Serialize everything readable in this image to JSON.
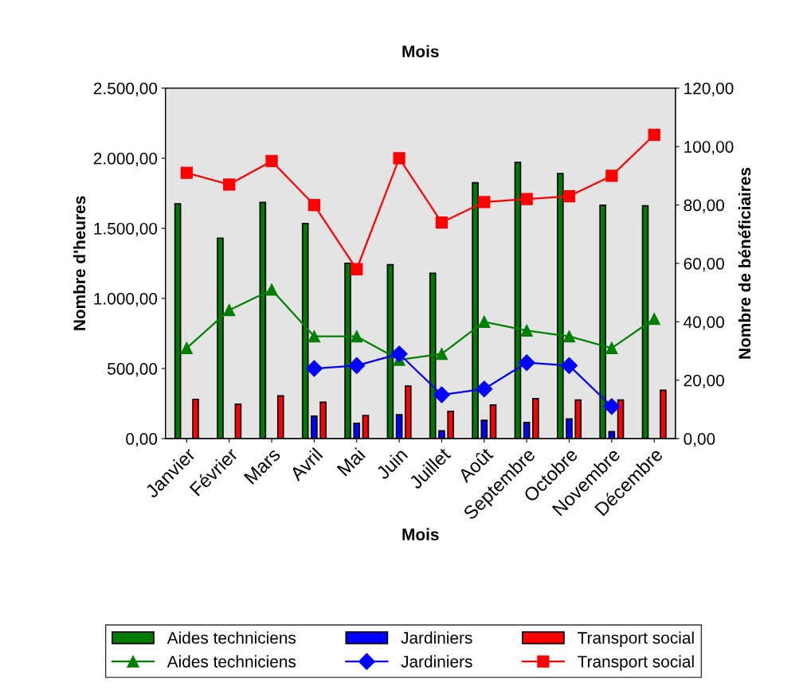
{
  "chart_data": {
    "type": "bar",
    "title": "Mois",
    "xlabel": "Mois",
    "ylabel": "Nombre d'heures",
    "y2label": "Nombre de bénéficiaires",
    "categories": [
      "Janvier",
      "Février",
      "Mars",
      "Avril",
      "Mai",
      "Juin",
      "Juillet",
      "Août",
      "Septembre",
      "Octobre",
      "Novembre",
      "Décembre"
    ],
    "series": [
      {
        "name": "Aides techniciens",
        "color": "#007a00",
        "values": [
          1675,
          1430,
          1685,
          1535,
          1250,
          1240,
          1180,
          1825,
          1970,
          1890,
          1665,
          1660
        ]
      },
      {
        "name": "Jardiniers",
        "color": "#0000ff",
        "values": [
          null,
          null,
          null,
          160,
          110,
          170,
          55,
          130,
          115,
          140,
          50,
          null
        ]
      },
      {
        "name": "Transport social",
        "color": "#ff0000",
        "values": [
          280,
          245,
          305,
          260,
          165,
          375,
          195,
          240,
          285,
          275,
          275,
          345
        ]
      },
      {
        "name": "Aides techniciens",
        "type": "line",
        "axis": "y2",
        "marker": "triangle",
        "color": "#008000",
        "values": [
          31,
          44,
          51,
          35,
          35,
          27,
          29,
          40,
          37,
          35,
          31,
          41
        ]
      },
      {
        "name": "Jardiniers",
        "type": "line",
        "axis": "y2",
        "marker": "diamond",
        "color": "#0000ff",
        "values": [
          null,
          null,
          null,
          24,
          25,
          29,
          15,
          17,
          26,
          25,
          11,
          null
        ]
      },
      {
        "name": "Transport social",
        "type": "line",
        "axis": "y2",
        "marker": "square",
        "color": "#ff0000",
        "values": [
          91,
          87,
          95,
          80,
          58,
          96,
          74,
          81,
          82,
          83,
          90,
          104
        ]
      }
    ],
    "ylim": [
      0,
      2500
    ],
    "yticks": [
      {
        "value": 0,
        "label": "0,00"
      },
      {
        "value": 500,
        "label": "500,00"
      },
      {
        "value": 1000,
        "label": "1.000,00"
      },
      {
        "value": 1500,
        "label": "1.500,00"
      },
      {
        "value": 2000,
        "label": "2.000,00"
      },
      {
        "value": 2500,
        "label": "2.500,00"
      }
    ],
    "y2lim": [
      0,
      120
    ],
    "y2ticks": [
      {
        "value": 0,
        "label": "0,00"
      },
      {
        "value": 20,
        "label": "20,00"
      },
      {
        "value": 40,
        "label": "40,00"
      },
      {
        "value": 60,
        "label": "60,00"
      },
      {
        "value": 80,
        "label": "80,00"
      },
      {
        "value": 100,
        "label": "100,00"
      },
      {
        "value": 120,
        "label": "120,00"
      }
    ],
    "grid": false,
    "legend": "bottom"
  }
}
